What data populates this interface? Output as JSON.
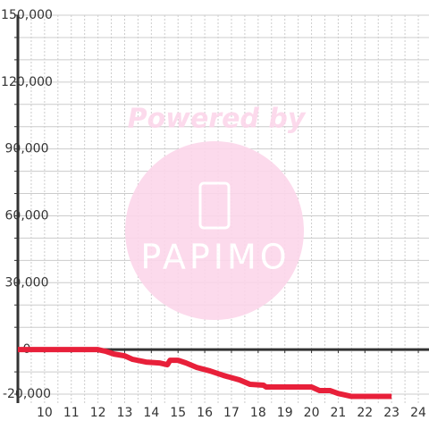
{
  "chart_data": {
    "type": "line",
    "watermark": {
      "line1": "Powered by",
      "line2": "PAPIMO"
    },
    "x": [
      9,
      12,
      12.3,
      12.6,
      13,
      13.3,
      13.8,
      14.3,
      14.6,
      14.7,
      15,
      15.3,
      15.7,
      16.2,
      16.7,
      17.3,
      17.7,
      18.2,
      18.3,
      20,
      20.3,
      20.7,
      21,
      21.5,
      23
    ],
    "series": [
      {
        "color": "#e8203a",
        "values": [
          0,
          0,
          -800,
          -2000,
          -2800,
          -4400,
          -5600,
          -6000,
          -6800,
          -4800,
          -4800,
          -6000,
          -8000,
          -9600,
          -11600,
          -13600,
          -15600,
          -16000,
          -16800,
          -16800,
          -18400,
          -18400,
          -19700,
          -21000,
          -21000
        ]
      }
    ],
    "xlim": [
      9,
      24.4
    ],
    "ylim": [
      -24000,
      150000
    ],
    "xticks": [
      10,
      11,
      12,
      13,
      14,
      15,
      16,
      17,
      18,
      19,
      20,
      21,
      22,
      23,
      24
    ],
    "yticks": [
      {
        "value": -20000,
        "label": "-20,000"
      },
      0,
      {
        "value": 30000,
        "label": "30,000"
      },
      {
        "value": 60000,
        "label": "60,000"
      },
      {
        "value": 90000,
        "label": "90,000"
      },
      {
        "value": 120000,
        "label": "120,000"
      },
      {
        "value": 150000,
        "label": "150,000"
      }
    ],
    "ygrid": [
      -20000,
      -10000,
      10000,
      20000,
      30000,
      40000,
      50000,
      60000,
      70000,
      80000,
      90000,
      100000,
      110000,
      120000,
      130000,
      140000,
      150000
    ],
    "xgrid": [
      9.5,
      10,
      10.5,
      11,
      11.5,
      12,
      12.5,
      13,
      13.5,
      14,
      14.5,
      15,
      15.5,
      16,
      16.5,
      17,
      17.5,
      18,
      18.5,
      19,
      19.5,
      20,
      20.5,
      21,
      21.5,
      22,
      22.5,
      23,
      23.5,
      24
    ]
  }
}
